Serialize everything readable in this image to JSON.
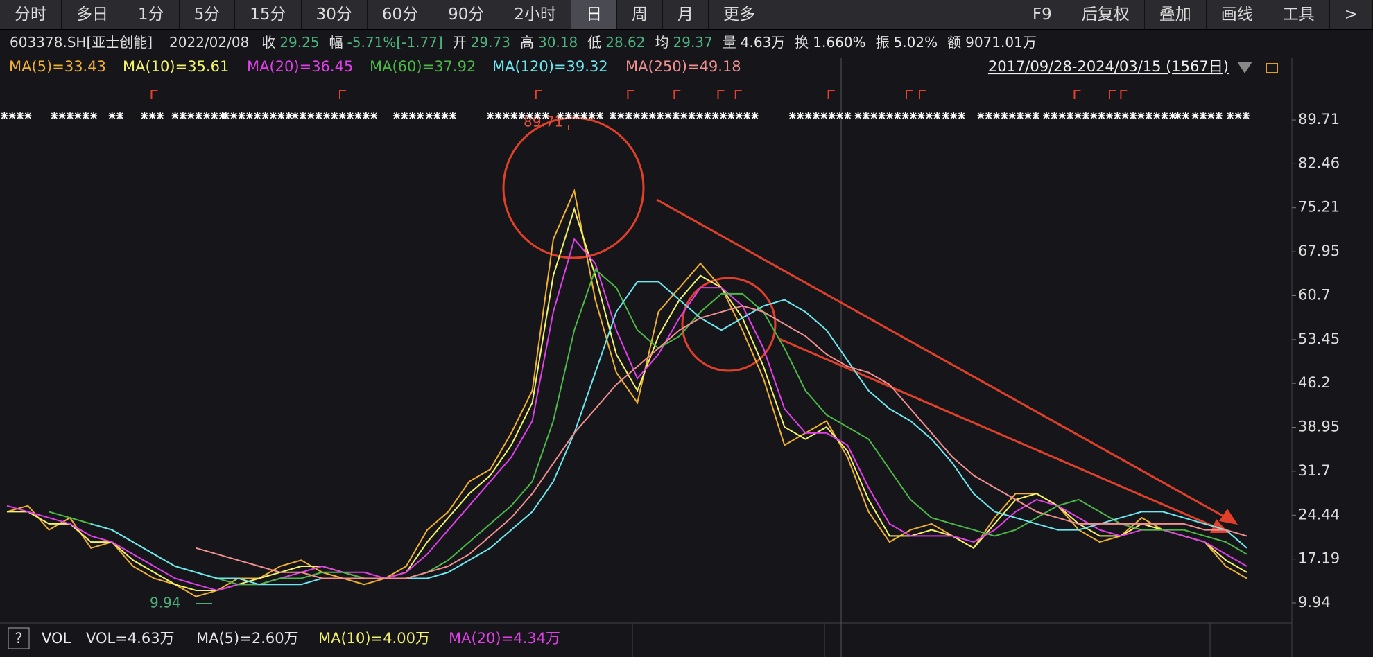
{
  "toolbar": {
    "left": [
      "分时",
      "多日",
      "1分",
      "5分",
      "15分",
      "30分",
      "60分",
      "90分",
      "2小时",
      "日",
      "周",
      "月",
      "更多"
    ],
    "active": 9,
    "right": [
      "F9",
      "后复权",
      "叠加",
      "画线",
      "工具",
      ">"
    ]
  },
  "info": {
    "code": "603378.SH[亚士创能]",
    "date": "2022/02/08",
    "items": [
      {
        "label": "收",
        "value": "29.25",
        "color": "#4cb87e"
      },
      {
        "label": "幅",
        "value": "-5.71%[-1.77]",
        "color": "#4cb87e"
      },
      {
        "label": "开",
        "value": "29.73",
        "color": "#4cb87e"
      },
      {
        "label": "高",
        "value": "30.18",
        "color": "#4cb87e"
      },
      {
        "label": "低",
        "value": "28.62",
        "color": "#4cb87e"
      },
      {
        "label": "均",
        "value": "29.37",
        "color": "#4cb87e"
      },
      {
        "label": "量",
        "value": "4.63万",
        "color": "#e8e8e8"
      },
      {
        "label": "换",
        "value": "1.660%",
        "color": "#e8e8e8"
      },
      {
        "label": "振",
        "value": "5.02%",
        "color": "#e8e8e8"
      },
      {
        "label": "额",
        "value": "9071.01万",
        "color": "#e8e8e8"
      }
    ]
  },
  "chart_data": {
    "type": "line",
    "date_range": "2017/09/28-2024/03/15 (1567日)",
    "ylim": [
      6.62,
      95.78
    ],
    "yticks": [
      89.71,
      82.46,
      75.21,
      67.95,
      60.7,
      53.45,
      46.2,
      38.95,
      31.7,
      24.44,
      17.19,
      9.94
    ],
    "annotations": [
      {
        "text": "89.71",
        "color": "#e0503c"
      },
      {
        "text": "9.94",
        "color": "#4caf7a"
      }
    ],
    "series": [
      {
        "name": "MA(5)=33.43",
        "color": "#f0b030",
        "values": [
          25,
          26,
          22,
          24,
          19,
          20,
          16,
          14,
          13,
          11,
          12,
          14,
          14,
          16,
          17,
          15,
          14,
          13,
          14,
          16,
          22,
          25,
          30,
          32,
          38,
          45,
          70,
          78,
          60,
          48,
          43,
          58,
          62,
          66,
          62,
          55,
          47,
          36,
          38,
          40,
          34,
          25,
          20,
          22,
          23,
          21,
          19,
          24,
          28,
          28,
          26,
          22,
          20,
          21,
          24,
          22,
          21,
          20,
          16,
          14
        ]
      },
      {
        "name": "MA(10)=35.61",
        "color": "#f3f36b",
        "values": [
          25,
          25,
          23,
          23,
          20,
          20,
          17,
          15,
          13,
          12,
          12,
          13,
          14,
          15,
          16,
          16,
          15,
          14,
          14,
          15,
          20,
          24,
          28,
          31,
          36,
          43,
          64,
          75,
          64,
          51,
          45,
          54,
          60,
          64,
          62,
          57,
          49,
          39,
          37,
          39,
          35,
          27,
          21,
          21,
          22,
          21,
          19,
          23,
          27,
          28,
          26,
          23,
          21,
          21,
          23,
          22,
          21,
          20,
          17,
          15
        ]
      },
      {
        "name": "MA(20)=36.45",
        "color": "#e040e8",
        "values": [
          26,
          25,
          24,
          23,
          21,
          20,
          18,
          16,
          14,
          13,
          12,
          13,
          13,
          14,
          15,
          16,
          15,
          15,
          14,
          15,
          18,
          22,
          26,
          30,
          34,
          40,
          58,
          70,
          66,
          55,
          47,
          51,
          57,
          62,
          62,
          59,
          52,
          42,
          38,
          38,
          36,
          29,
          23,
          21,
          21,
          21,
          20,
          22,
          25,
          27,
          26,
          24,
          22,
          21,
          22,
          22,
          21,
          20,
          18,
          16
        ]
      },
      {
        "name": "MA(60)=37.92",
        "color": "#4cb848",
        "values": [
          null,
          null,
          25,
          24,
          23,
          22,
          20,
          18,
          16,
          15,
          14,
          13,
          13,
          14,
          14,
          15,
          15,
          14,
          14,
          14,
          15,
          17,
          20,
          23,
          26,
          30,
          40,
          55,
          65,
          62,
          55,
          52,
          54,
          58,
          61,
          61,
          58,
          52,
          45,
          41,
          39,
          37,
          32,
          27,
          24,
          23,
          22,
          21,
          22,
          24,
          26,
          27,
          25,
          23,
          22,
          22,
          22,
          21,
          20,
          18
        ]
      },
      {
        "name": "MA(120)=39.32",
        "color": "#6ee8f0",
        "values": [
          null,
          null,
          null,
          null,
          23,
          22,
          20,
          18,
          16,
          15,
          14,
          14,
          13,
          13,
          13,
          14,
          14,
          14,
          14,
          14,
          14,
          15,
          17,
          19,
          22,
          25,
          30,
          38,
          48,
          58,
          63,
          63,
          60,
          57,
          55,
          57,
          59,
          60,
          58,
          55,
          50,
          45,
          42,
          40,
          37,
          33,
          28,
          25,
          24,
          23,
          22,
          22,
          23,
          24,
          25,
          25,
          24,
          23,
          22,
          19
        ]
      },
      {
        "name": "MA(250)=49.18",
        "color": "#f09090",
        "values": [
          null,
          null,
          null,
          null,
          null,
          null,
          null,
          null,
          null,
          19,
          18,
          17,
          16,
          15,
          15,
          14,
          14,
          14,
          14,
          14,
          15,
          16,
          18,
          21,
          24,
          28,
          33,
          38,
          42,
          46,
          49,
          52,
          55,
          57,
          58,
          59,
          58,
          56,
          54,
          51,
          49,
          48,
          46,
          42,
          38,
          34,
          31,
          29,
          27,
          25,
          24,
          23,
          23,
          23,
          23,
          23,
          23,
          22,
          22,
          21
        ]
      }
    ]
  },
  "volume_bar": {
    "help": "?",
    "label": "VOL",
    "items": [
      {
        "text": "VOL=4.63万",
        "color": "#e8e8e8"
      },
      {
        "text": "MA(5)=2.60万",
        "color": "#e8e8e8"
      },
      {
        "text": "MA(10)=4.00万",
        "color": "#f3f36b"
      },
      {
        "text": "MA(20)=4.34万",
        "color": "#e040e8"
      }
    ]
  }
}
